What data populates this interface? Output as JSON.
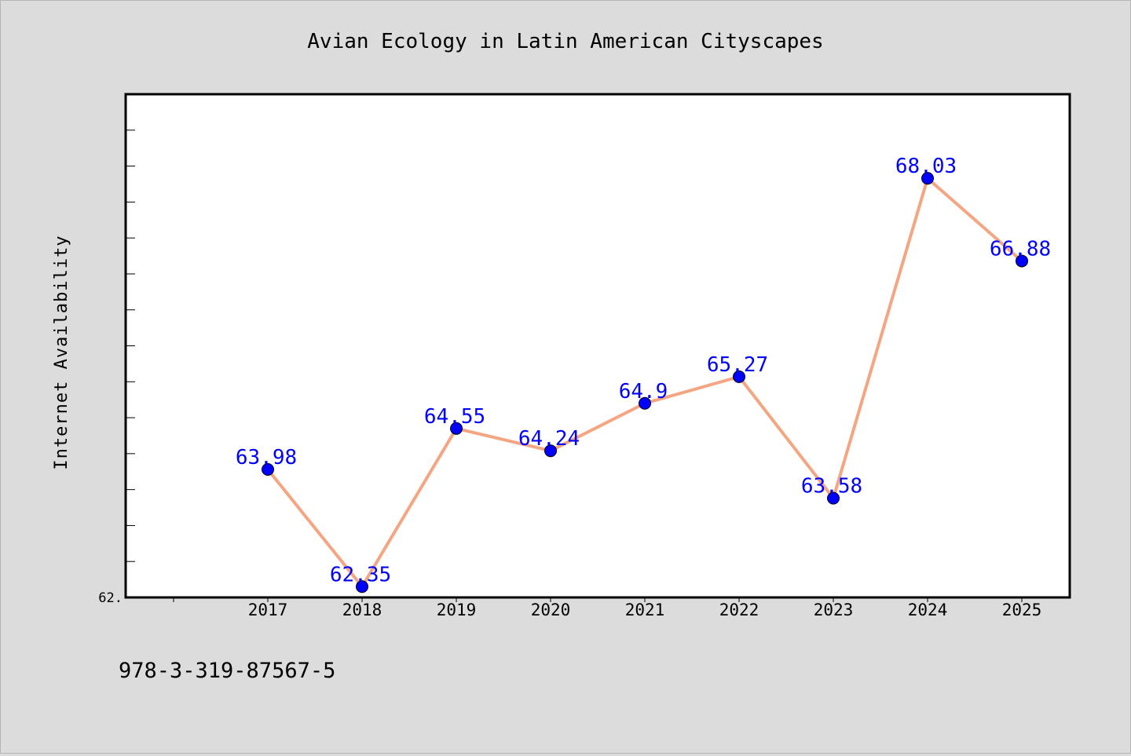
{
  "chart_data": {
    "type": "line",
    "title": "Avian Ecology in Latin American Cityscapes",
    "ylabel": "Internet Availability",
    "xlabel": "",
    "categories": [
      "2017",
      "2018",
      "2019",
      "2020",
      "2021",
      "2022",
      "2023",
      "2024",
      "2025"
    ],
    "series": [
      {
        "values": [
          63.98,
          62.35,
          64.55,
          64.24,
          64.9,
          65.27,
          63.58,
          68.03,
          66.88
        ],
        "labels": [
          "63.98",
          "62.35",
          "64.55",
          "64.24",
          "64.9",
          "65.27",
          "63.58",
          "68.03",
          "66.88"
        ],
        "line_color": "#f4a582",
        "marker_color": "#0000ff",
        "label_color": "#0000ff"
      }
    ],
    "ytick_label": "62.",
    "ylim": [
      62.2,
      69.2
    ],
    "grid": false,
    "legend": "none"
  },
  "footer_text": "978-3-319-87567-5",
  "colors": {
    "background": "#dcdcdc",
    "plot_background": "#ffffff",
    "axis": "#000000"
  }
}
